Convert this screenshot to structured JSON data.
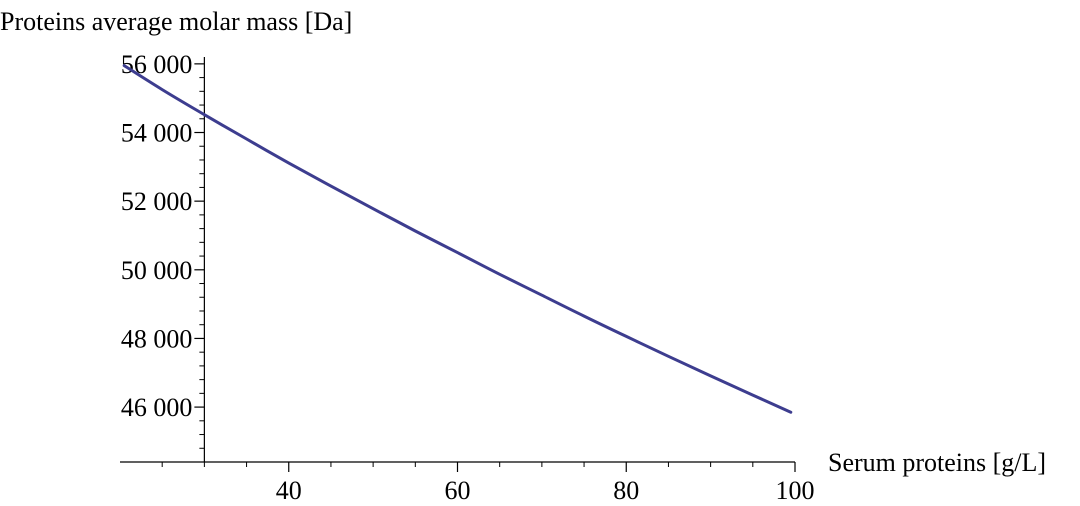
{
  "chart_data": {
    "type": "line",
    "title": "",
    "xlabel": "Serum proteins [g/L]",
    "ylabel": "Proteins average molar mass [Da]",
    "xlim": [
      20,
      100
    ],
    "ylim": [
      44400,
      56200
    ],
    "x_ticks": [
      40,
      60,
      80,
      100
    ],
    "x_tick_labels": [
      "40",
      "60",
      "80",
      "100"
    ],
    "y_ticks": [
      46000,
      48000,
      50000,
      52000,
      54000,
      56000
    ],
    "y_tick_labels": [
      "46 000",
      "48 000",
      "50 000",
      "52 000",
      "54 000",
      "56 000"
    ],
    "axis_origin": {
      "x": 30,
      "y": 44400
    },
    "grid": false,
    "line_color": "#3d3d8f",
    "series": [
      {
        "x": [
          20.5,
          25,
          30,
          35,
          40,
          45,
          50,
          55,
          60,
          65,
          70,
          75,
          80,
          85,
          90,
          95,
          99.5
        ],
        "y": [
          55950,
          55250,
          54520,
          53810,
          53110,
          52440,
          51780,
          51130,
          50500,
          49870,
          49260,
          48650,
          48060,
          47480,
          46910,
          46350,
          45850
        ]
      }
    ]
  }
}
